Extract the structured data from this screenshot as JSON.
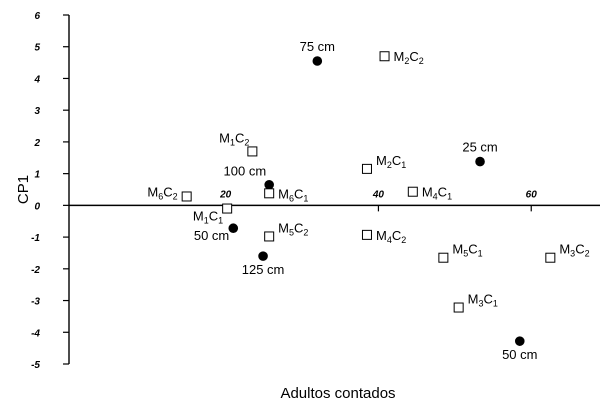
{
  "chart_data": {
    "type": "scatter",
    "xlabel": "Adultos contados",
    "ylabel": "CP1",
    "xlim": [
      -0.5,
      69
    ],
    "ylim": [
      -5,
      6
    ],
    "xticks": [
      20,
      40,
      60
    ],
    "yticks": [
      6,
      5,
      4,
      3,
      2,
      1,
      0,
      -1,
      -2,
      -3,
      -4,
      -5
    ],
    "grid": false,
    "points": [
      {
        "x": 32,
        "y": 4.55,
        "marker": "circle",
        "label": "75 cm",
        "label_pos": "above"
      },
      {
        "x": 40.8,
        "y": 4.7,
        "marker": "square",
        "label_main": "M",
        "label_sub1": "2",
        "label_mid": "C",
        "label_sub2": "2",
        "label_pos": "right"
      },
      {
        "x": 23.5,
        "y": 1.7,
        "marker": "square",
        "label_main": "M",
        "label_sub1": "1",
        "label_mid": "C",
        "label_sub2": "2",
        "label_pos": "upper-left"
      },
      {
        "x": 38.5,
        "y": 1.15,
        "marker": "square",
        "label_main": "M",
        "label_sub1": "2",
        "label_mid": "C",
        "label_sub2": "1",
        "label_pos": "upper-right"
      },
      {
        "x": 53.3,
        "y": 1.38,
        "marker": "circle",
        "label": "25 cm",
        "label_pos": "above"
      },
      {
        "x": 25.7,
        "y": 0.65,
        "marker": "circle",
        "label": "100 cm",
        "label_pos": "upper-left"
      },
      {
        "x": 25.7,
        "y": 0.38,
        "marker": "square",
        "label_main": "M",
        "label_sub1": "6",
        "label_mid": "C",
        "label_sub2": "1",
        "label_pos": "right"
      },
      {
        "x": 14.9,
        "y": 0.28,
        "marker": "square",
        "label_main": "M",
        "label_sub1": "6",
        "label_mid": "C",
        "label_sub2": "2",
        "label_pos": "left"
      },
      {
        "x": 44.5,
        "y": 0.43,
        "marker": "square",
        "label_main": "M",
        "label_sub1": "4",
        "label_mid": "C",
        "label_sub2": "1",
        "label_pos": "right"
      },
      {
        "x": 20.2,
        "y": -0.1,
        "marker": "square",
        "label_main": "M",
        "label_sub1": "1",
        "label_mid": "C",
        "label_sub2": "1",
        "label_pos": "lower-left"
      },
      {
        "x": 21,
        "y": -0.72,
        "marker": "circle",
        "label": "50 cm",
        "label_pos": "lower-left"
      },
      {
        "x": 25.7,
        "y": -0.98,
        "marker": "square",
        "label_main": "M",
        "label_sub1": "5",
        "label_mid": "C",
        "label_sub2": "2",
        "label_pos": "upper-right"
      },
      {
        "x": 38.5,
        "y": -0.93,
        "marker": "square",
        "label_main": "M",
        "label_sub1": "4",
        "label_mid": "C",
        "label_sub2": "2",
        "label_pos": "right"
      },
      {
        "x": 24.9,
        "y": -1.6,
        "marker": "circle",
        "label": "125 cm",
        "label_pos": "below"
      },
      {
        "x": 48.5,
        "y": -1.65,
        "marker": "square",
        "label_main": "M",
        "label_sub1": "5",
        "label_mid": "C",
        "label_sub2": "1",
        "label_pos": "upper-right"
      },
      {
        "x": 62.5,
        "y": -1.65,
        "marker": "square",
        "label_main": "M",
        "label_sub1": "3",
        "label_mid": "C",
        "label_sub2": "2",
        "label_pos": "upper-right"
      },
      {
        "x": 50.5,
        "y": -3.22,
        "marker": "square",
        "label_main": "M",
        "label_sub1": "3",
        "label_mid": "C",
        "label_sub2": "1",
        "label_pos": "upper-right"
      },
      {
        "x": 58.5,
        "y": -4.28,
        "marker": "circle",
        "label": "50 cm",
        "label_pos": "below"
      }
    ]
  }
}
